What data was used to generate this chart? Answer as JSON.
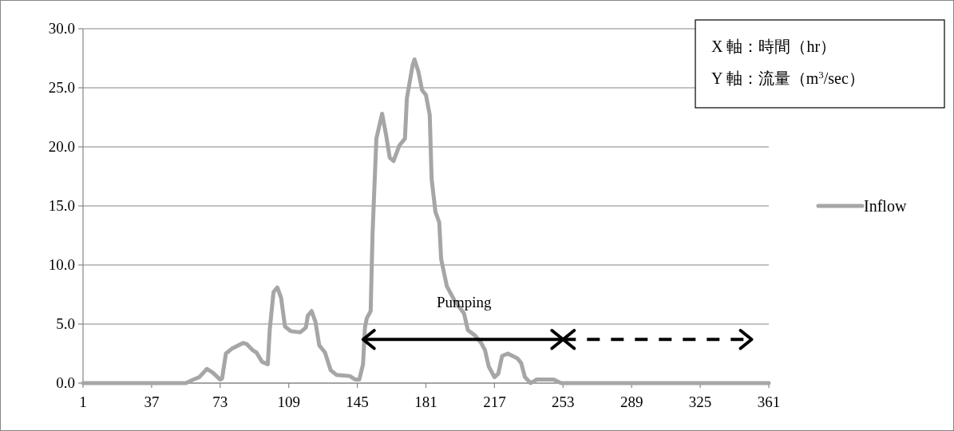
{
  "chart_data": {
    "type": "line",
    "xlim": [
      1,
      361
    ],
    "ylim": [
      0,
      30
    ],
    "xticks": [
      1,
      37,
      73,
      109,
      145,
      181,
      217,
      253,
      289,
      325,
      361
    ],
    "yticks": [
      {
        "value": 0,
        "label": "0.0"
      },
      {
        "value": 5,
        "label": "5.0"
      },
      {
        "value": 10,
        "label": "10.0"
      },
      {
        "value": 15,
        "label": "15.0"
      },
      {
        "value": 20,
        "label": "20.0"
      },
      {
        "value": 25,
        "label": "25.0"
      },
      {
        "value": 30,
        "label": "30.0"
      }
    ],
    "grid": "y",
    "legend": "right",
    "marker": "none",
    "series": [
      {
        "name": "Inflow",
        "color": "#a6a6a6",
        "line_style": "solid",
        "x": [
          1,
          55,
          59,
          62,
          66,
          69,
          73,
          74,
          76,
          79,
          85,
          87,
          90,
          92,
          95,
          98,
          99,
          101,
          103,
          105,
          107,
          110,
          115,
          118,
          119,
          121,
          123,
          125,
          128,
          131,
          134,
          141,
          144,
          146,
          148,
          149,
          150,
          152,
          153,
          155,
          158,
          160,
          162,
          164,
          167,
          170,
          171,
          174,
          175,
          177,
          179,
          181,
          183,
          184,
          186,
          188,
          189,
          192,
          196,
          201,
          203,
          207,
          210,
          212,
          214,
          217,
          219,
          221,
          224,
          229,
          231,
          233,
          236,
          239,
          248,
          252,
          361
        ],
        "values": [
          0,
          0,
          0.3,
          0.5,
          1.2,
          0.9,
          0.3,
          0.4,
          2.5,
          2.9,
          3.4,
          3.3,
          2.8,
          2.6,
          1.8,
          1.6,
          4.5,
          7.7,
          8.1,
          7.2,
          4.8,
          4.4,
          4.3,
          4.7,
          5.7,
          6.1,
          5.2,
          3.2,
          2.6,
          1.1,
          0.7,
          0.6,
          0.3,
          0.3,
          1.6,
          4.7,
          5.5,
          6.1,
          12.7,
          20.7,
          22.8,
          21.1,
          19.1,
          18.8,
          20.1,
          20.7,
          24.1,
          26.9,
          27.4,
          26.4,
          24.8,
          24.4,
          22.7,
          17.3,
          14.5,
          13.6,
          10.5,
          8.2,
          7.0,
          5.9,
          4.5,
          4.0,
          3.4,
          2.8,
          1.4,
          0.5,
          0.8,
          2.3,
          2.5,
          2.1,
          1.7,
          0.5,
          0,
          0.3,
          0.3,
          0,
          0
        ]
      },
      {
        "color": "#000000",
        "line_style": "solid",
        "x": [
          148,
          253
        ],
        "values": [
          3.7,
          3.7
        ]
      },
      {
        "color": "#000000",
        "line_style": "dashed",
        "x": [
          253,
          352
        ],
        "values": [
          3.7,
          3.7
        ]
      }
    ],
    "annotations": [
      {
        "text": "Pumping",
        "x": 201,
        "y": 6.4
      },
      "X 軸：時間（hr）",
      "Y 軸：流量（m$^{3}$/sec）"
    ]
  }
}
